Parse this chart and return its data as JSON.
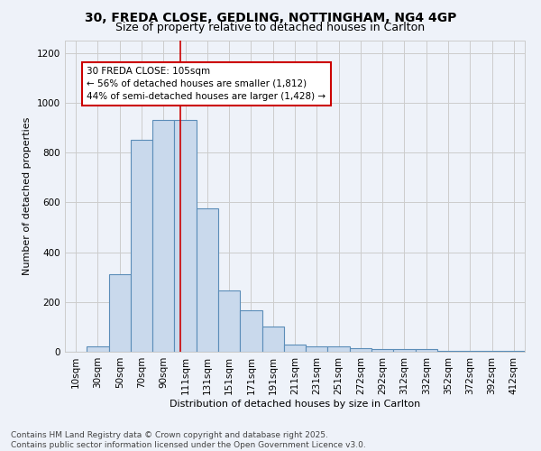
{
  "title_line1": "30, FREDA CLOSE, GEDLING, NOTTINGHAM, NG4 4GP",
  "title_line2": "Size of property relative to detached houses in Carlton",
  "xlabel": "Distribution of detached houses by size in Carlton",
  "ylabel": "Number of detached properties",
  "bin_labels": [
    "10sqm",
    "30sqm",
    "50sqm",
    "70sqm",
    "90sqm",
    "111sqm",
    "131sqm",
    "151sqm",
    "171sqm",
    "191sqm",
    "211sqm",
    "231sqm",
    "251sqm",
    "272sqm",
    "292sqm",
    "312sqm",
    "332sqm",
    "352sqm",
    "372sqm",
    "392sqm",
    "412sqm"
  ],
  "bin_values": [
    0,
    20,
    310,
    850,
    930,
    930,
    575,
    245,
    165,
    100,
    30,
    20,
    20,
    15,
    10,
    10,
    10,
    5,
    5,
    5,
    5
  ],
  "bar_color": "#c9d9ec",
  "bar_edge_color": "#5b8db8",
  "property_line_bin_index": 4.75,
  "annotation_text": "30 FREDA CLOSE: 105sqm\n← 56% of detached houses are smaller (1,812)\n44% of semi-detached houses are larger (1,428) →",
  "annotation_box_color": "#ffffff",
  "annotation_box_edge_color": "#cc0000",
  "red_line_color": "#cc0000",
  "ylim": [
    0,
    1250
  ],
  "yticks": [
    0,
    200,
    400,
    600,
    800,
    1000,
    1200
  ],
  "grid_color": "#cccccc",
  "background_color": "#eef2f9",
  "footer_text": "Contains HM Land Registry data © Crown copyright and database right 2025.\nContains public sector information licensed under the Open Government Licence v3.0.",
  "title_fontsize": 10,
  "subtitle_fontsize": 9,
  "axis_label_fontsize": 8,
  "tick_fontsize": 7.5,
  "footer_fontsize": 6.5,
  "annotation_fontsize": 7.5
}
